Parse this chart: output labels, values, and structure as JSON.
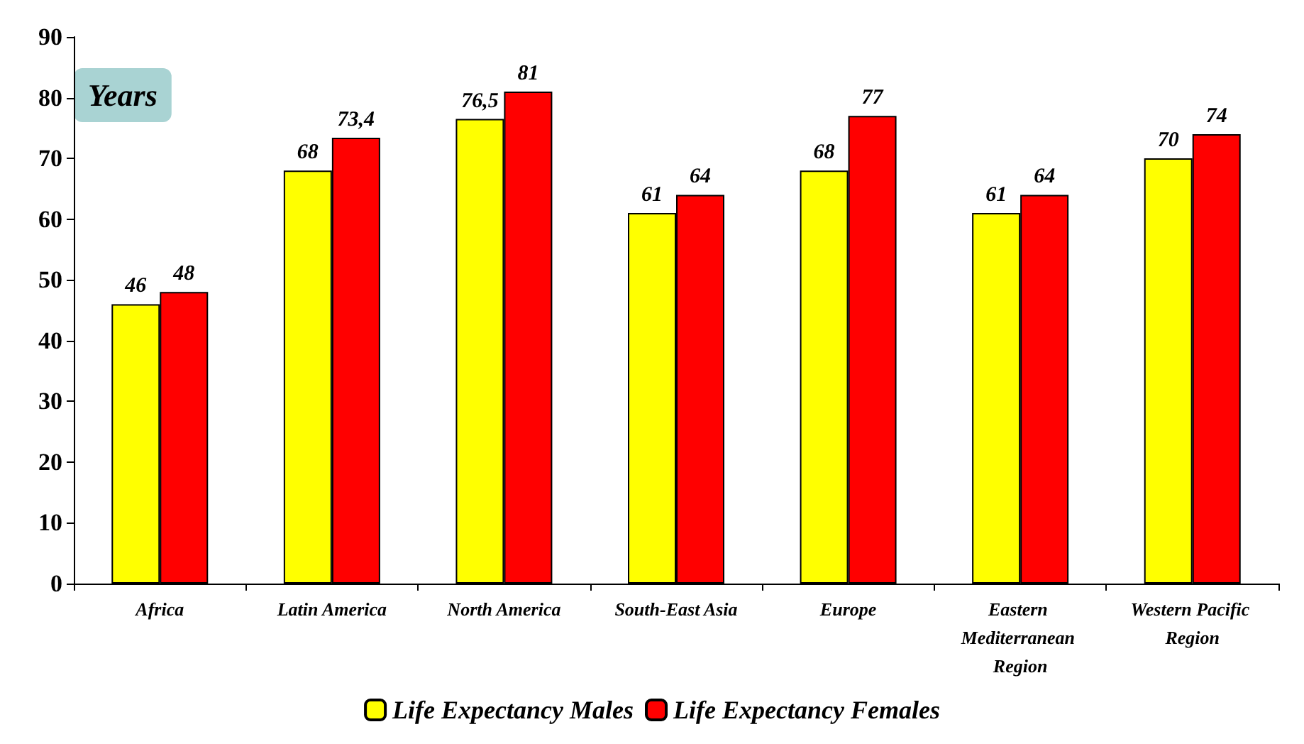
{
  "chart_data": {
    "type": "bar",
    "ylabel": "Years",
    "categories": [
      "Africa",
      "Latin America",
      "North America",
      "South-East Asia",
      "Europe",
      "Eastern Mediterranean Region",
      "Western Pacific Region"
    ],
    "series": [
      {
        "name": "Life Expectancy Males",
        "color": "#ffff00",
        "values": [
          46,
          68,
          76.5,
          61,
          68,
          61,
          70
        ],
        "value_labels": [
          "46",
          "68",
          "76,5",
          "61",
          "68",
          "61",
          "70"
        ]
      },
      {
        "name": "Life Expectancy Females",
        "color": "#ff0000",
        "values": [
          48,
          73.4,
          81,
          64,
          77,
          64,
          74
        ],
        "value_labels": [
          "48",
          "73,4",
          "81",
          "64",
          "77",
          "64",
          "74"
        ]
      }
    ],
    "ylim": [
      0,
      90
    ],
    "yticks": [
      0,
      10,
      20,
      30,
      40,
      50,
      60,
      70,
      80,
      90
    ],
    "grid": false,
    "legend": "bottom"
  }
}
